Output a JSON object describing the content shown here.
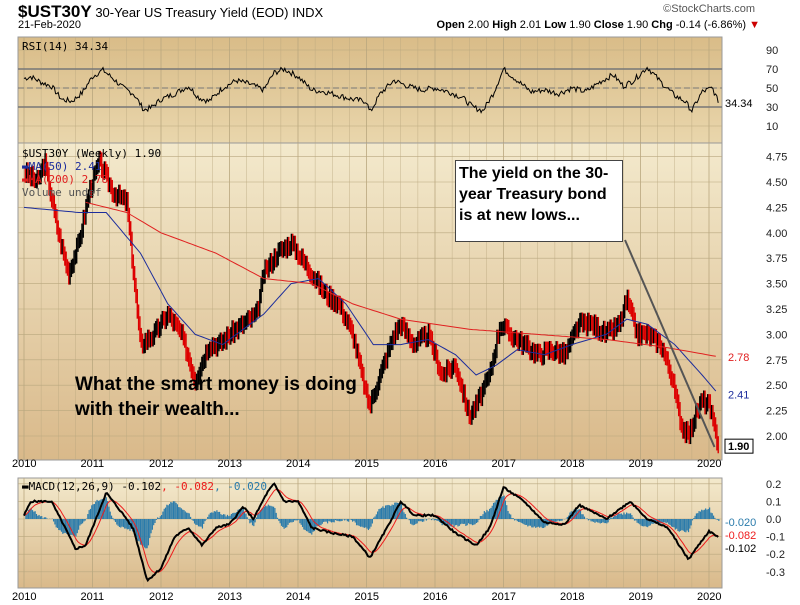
{
  "header": {
    "symbol": "$UST30Y",
    "name": "30-Year US Treasury Yield (EOD)",
    "exchange": "INDX",
    "date": "21-Feb-2020",
    "brand": "©StockCharts.com",
    "open_label": "Open",
    "open": "2.00",
    "high_label": "High",
    "high": "2.01",
    "low_label": "Low",
    "low": "1.90",
    "close_label": "Close",
    "close": "1.90",
    "chg_label": "Chg",
    "chg": "-0.14 (-6.86%)",
    "chg_icon": "down-triangle-icon"
  },
  "colors": {
    "bg_light": "#f3e9cc",
    "bg_dark": "#d9b98a",
    "price": "#000000",
    "ma50": "#1c2d9c",
    "ma200": "#e02020",
    "macd": "#000000",
    "signal": "#ee1c1c",
    "hist": "#2a7bab",
    "grid": "#b9a77f"
  },
  "annotations": {
    "box": "The yield on the 30-year Treasury bond is at new lows...",
    "text": "What the smart money is doing with their wealth..."
  },
  "chart_data": [
    {
      "type": "line",
      "panel": "RSI",
      "legend": "RSI(14) 34.34",
      "last": "34.34",
      "ylim": [
        0,
        100
      ],
      "ticks": [
        "90",
        "70",
        "50",
        "30",
        "10"
      ],
      "tick_values": [
        90,
        70,
        50,
        30,
        10
      ],
      "levels": [
        70,
        50,
        30
      ],
      "x": [
        2010,
        2010.1,
        2010.25,
        2010.4,
        2010.55,
        2010.7,
        2010.85,
        2011.0,
        2011.15,
        2011.3,
        2011.45,
        2011.6,
        2011.75,
        2011.85,
        2012.0,
        2012.2,
        2012.4,
        2012.55,
        2012.7,
        2012.9,
        2013.1,
        2013.3,
        2013.5,
        2013.65,
        2013.8,
        2014.0,
        2014.2,
        2014.4,
        2014.6,
        2014.8,
        2015.0,
        2015.05,
        2015.2,
        2015.4,
        2015.6,
        2015.8,
        2016.0,
        2016.2,
        2016.4,
        2016.55,
        2016.7,
        2016.85,
        2017.0,
        2017.2,
        2017.4,
        2017.6,
        2017.8,
        2018.0,
        2018.2,
        2018.4,
        2018.6,
        2018.75,
        2018.9,
        2019.1,
        2019.3,
        2019.5,
        2019.65,
        2019.75,
        2019.9,
        2020.05,
        2020.14
      ],
      "values": [
        60,
        62,
        56,
        52,
        38,
        36,
        45,
        62,
        69,
        60,
        50,
        44,
        27,
        29,
        38,
        44,
        52,
        40,
        36,
        50,
        58,
        54,
        48,
        66,
        70,
        62,
        48,
        46,
        42,
        38,
        36,
        24,
        44,
        58,
        52,
        48,
        50,
        46,
        40,
        30,
        26,
        44,
        70,
        58,
        46,
        48,
        44,
        50,
        46,
        56,
        64,
        52,
        58,
        72,
        56,
        42,
        36,
        26,
        46,
        50,
        34.34
      ]
    },
    {
      "type": "candlestick+line",
      "panel": "price",
      "legend": "$UST30Y (Weekly) 1.90",
      "ma50_legend": "MA(50) 2.41",
      "ma200_legend": "MA(200) 2.78",
      "volume_legend": "Volume undef",
      "ylim": [
        1.8,
        4.9
      ],
      "ticks": [
        "4.75",
        "4.50",
        "4.25",
        "4.00",
        "3.75",
        "3.50",
        "3.25",
        "3.00",
        "2.75",
        "2.50",
        "2.25",
        "2.00"
      ],
      "tick_values": [
        4.75,
        4.5,
        4.25,
        4.0,
        3.75,
        3.5,
        3.25,
        3.0,
        2.75,
        2.5,
        2.25,
        2.0
      ],
      "x": [
        2010.0,
        2010.2,
        2010.3,
        2010.5,
        2010.65,
        2010.8,
        2010.95,
        2011.1,
        2011.3,
        2011.5,
        2011.6,
        2011.7,
        2011.9,
        2012.1,
        2012.3,
        2012.5,
        2012.7,
        2012.85,
        2013.0,
        2013.2,
        2013.4,
        2013.5,
        2013.7,
        2013.9,
        2014.0,
        2014.2,
        2014.4,
        2014.6,
        2014.8,
        2015.0,
        2015.05,
        2015.2,
        2015.4,
        2015.5,
        2015.7,
        2015.9,
        2016.1,
        2016.3,
        2016.5,
        2016.6,
        2016.8,
        2016.95,
        2017.1,
        2017.3,
        2017.5,
        2017.7,
        2017.9,
        2018.1,
        2018.3,
        2018.5,
        2018.7,
        2018.8,
        2018.95,
        2019.1,
        2019.3,
        2019.45,
        2019.6,
        2019.7,
        2019.8,
        2019.9,
        2020.0,
        2020.14
      ],
      "values": [
        4.6,
        4.5,
        4.7,
        4.0,
        3.6,
        3.9,
        4.4,
        4.7,
        4.4,
        4.3,
        3.6,
        2.9,
        3.0,
        3.2,
        3.0,
        2.55,
        2.9,
        2.9,
        3.0,
        3.1,
        3.2,
        3.6,
        3.8,
        3.9,
        3.8,
        3.6,
        3.4,
        3.3,
        3.0,
        2.4,
        2.3,
        2.6,
        3.0,
        3.1,
        2.9,
        3.0,
        2.6,
        2.7,
        2.2,
        2.3,
        2.6,
        3.1,
        3.0,
        2.9,
        2.8,
        2.85,
        2.8,
        3.1,
        3.1,
        3.0,
        3.1,
        3.35,
        3.0,
        3.0,
        2.9,
        2.6,
        2.1,
        2.0,
        2.2,
        2.35,
        2.3,
        1.9
      ],
      "ma50": {
        "last": "2.41",
        "x": [
          2010,
          2010.8,
          2011.2,
          2011.7,
          2012.1,
          2012.5,
          2012.9,
          2013.5,
          2013.9,
          2014.3,
          2014.7,
          2015.1,
          2015.5,
          2015.9,
          2016.3,
          2016.6,
          2016.9,
          2017.2,
          2017.6,
          2018,
          2018.5,
          2018.8,
          2019.1,
          2019.5,
          2019.9,
          2020.14
        ],
        "values": [
          4.25,
          4.2,
          4.2,
          3.8,
          3.3,
          3.0,
          2.9,
          3.2,
          3.5,
          3.55,
          3.3,
          2.9,
          2.9,
          2.95,
          2.8,
          2.6,
          2.7,
          2.85,
          2.8,
          2.9,
          3.0,
          3.15,
          3.1,
          2.9,
          2.6,
          2.41
        ]
      },
      "ma200": {
        "last": "2.78",
        "x": [
          2010.9,
          2011.5,
          2012,
          2012.8,
          2013.5,
          2014.2,
          2014.8,
          2015.5,
          2016.5,
          2017.5,
          2018.5,
          2019.3,
          2020.14
        ],
        "values": [
          4.3,
          4.2,
          4.0,
          3.8,
          3.55,
          3.5,
          3.3,
          3.15,
          3.05,
          3.0,
          2.95,
          2.88,
          2.78
        ]
      }
    },
    {
      "type": "line+bar",
      "panel": "MACD",
      "legend": "MACD(12,26,9)",
      "macd_last": "-0.102",
      "signal_last": "-0.082",
      "hist_last": "-0.020",
      "ylim": [
        -0.4,
        0.25
      ],
      "ticks": [
        "0.2",
        "0.1",
        "0.0",
        "-0.1",
        "-0.2",
        "-0.3"
      ],
      "tick_values": [
        0.2,
        0.1,
        0,
        -0.1,
        -0.2,
        -0.3
      ],
      "x": [
        2010,
        2010.1,
        2010.4,
        2010.6,
        2010.75,
        2010.9,
        2011.1,
        2011.2,
        2011.5,
        2011.6,
        2011.8,
        2012.0,
        2012.2,
        2012.4,
        2012.6,
        2012.8,
        2013.0,
        2013.2,
        2013.35,
        2013.55,
        2013.65,
        2013.8,
        2014.0,
        2014.2,
        2014.5,
        2014.8,
        2015.05,
        2015.3,
        2015.5,
        2015.7,
        2016.0,
        2016.3,
        2016.6,
        2016.8,
        2017.0,
        2017.3,
        2017.6,
        2017.9,
        2018.1,
        2018.5,
        2018.85,
        2019.1,
        2019.4,
        2019.7,
        2019.9,
        2020.0,
        2020.14
      ],
      "values": [
        0.02,
        0.1,
        0.1,
        -0.05,
        -0.17,
        -0.15,
        0.05,
        0.15,
        0.0,
        -0.06,
        -0.35,
        -0.28,
        -0.1,
        -0.05,
        -0.15,
        -0.05,
        -0.03,
        0.07,
        0.0,
        0.15,
        0.2,
        0.1,
        0.1,
        -0.05,
        -0.08,
        -0.1,
        -0.22,
        -0.05,
        0.1,
        0.02,
        0.02,
        -0.08,
        -0.15,
        -0.05,
        0.18,
        0.1,
        -0.02,
        -0.03,
        0.08,
        0.0,
        0.1,
        0.0,
        -0.05,
        -0.23,
        -0.12,
        -0.07,
        -0.102
      ]
    }
  ],
  "x_axis": {
    "labels": [
      "2010",
      "2011",
      "2012",
      "2013",
      "2014",
      "2015",
      "2016",
      "2017",
      "2018",
      "2019",
      "2020"
    ],
    "values": [
      2010,
      2011,
      2012,
      2013,
      2014,
      2015,
      2016,
      2017,
      2018,
      2019,
      2020
    ]
  }
}
